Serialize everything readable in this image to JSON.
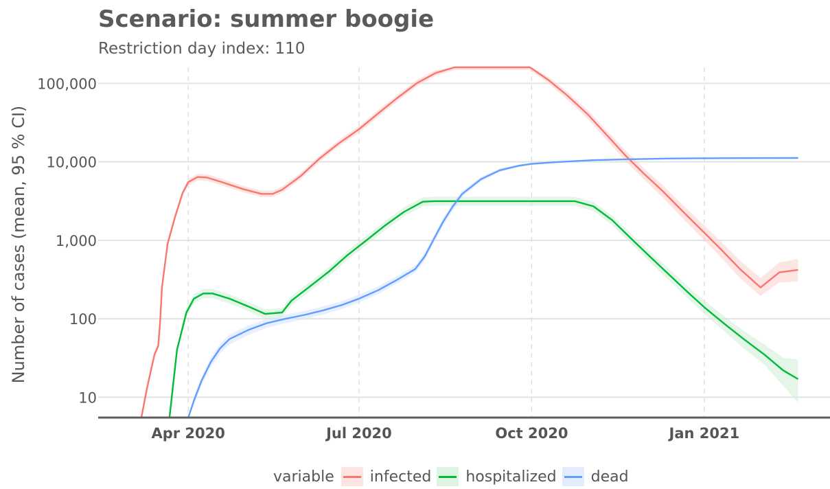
{
  "title": "Scenario: summer boogie",
  "subtitle": "Restriction day index: 110",
  "chart_data": {
    "type": "line",
    "title": "Scenario: summer boogie",
    "subtitle": "Restriction day index: 110",
    "xlabel": "",
    "ylabel": "Number of cases (mean, 95 % CI)",
    "y_scale": "log10",
    "ylim": [
      5.5,
      160000
    ],
    "xlim": [
      "2020-02-13",
      "2021-03-09"
    ],
    "x_ticks": [
      "2020-04-01",
      "2020-07-01",
      "2020-10-01",
      "2021-01-01"
    ],
    "x_tick_labels": [
      "Apr 2020",
      "Jul 2020",
      "Oct 2020",
      "Jan 2021"
    ],
    "y_ticks": [
      10,
      100,
      1000,
      10000,
      100000
    ],
    "y_tick_labels": [
      "10",
      "100",
      "1,000",
      "10,000",
      "100,000"
    ],
    "grid": true,
    "legend_title": "variable",
    "legend_position": "bottom",
    "series": [
      {
        "name": "infected",
        "color": "#F8766D",
        "band_color": "#FBD0CD",
        "x": [
          "2020-03-07",
          "2020-03-10",
          "2020-03-14",
          "2020-03-16",
          "2020-03-17",
          "2020-03-18",
          "2020-03-21",
          "2020-03-25",
          "2020-03-29",
          "2020-04-01",
          "2020-04-06",
          "2020-04-11",
          "2020-04-20",
          "2020-04-30",
          "2020-05-10",
          "2020-05-16",
          "2020-05-21",
          "2020-05-31",
          "2020-06-10",
          "2020-06-20",
          "2020-07-01",
          "2020-07-11",
          "2020-07-21",
          "2020-08-01",
          "2020-08-11",
          "2020-08-21",
          "2020-08-26",
          "2020-09-30",
          "2020-10-01",
          "2020-10-10",
          "2020-10-20",
          "2020-10-31",
          "2020-11-10",
          "2020-11-20",
          "2020-11-30",
          "2020-12-10",
          "2020-12-20",
          "2021-01-01",
          "2021-01-10",
          "2021-01-20",
          "2021-01-31",
          "2021-02-10",
          "2021-02-20"
        ],
        "values": [
          5.5,
          13,
          35,
          45,
          90,
          250,
          900,
          2000,
          4000,
          5500,
          6400,
          6300,
          5400,
          4500,
          3900,
          3900,
          4400,
          6600,
          11000,
          17000,
          26000,
          41000,
          64000,
          101000,
          136000,
          160000,
          160000,
          160000,
          155000,
          110000,
          70000,
          40000,
          22000,
          12000,
          7000,
          4200,
          2400,
          1250,
          760,
          430,
          250,
          390,
          420
        ],
        "lower": [
          5.5,
          12,
          32,
          41,
          82,
          225,
          820,
          1850,
          3700,
          5000,
          5800,
          5700,
          4900,
          4100,
          3550,
          3550,
          4000,
          6000,
          10000,
          15500,
          23500,
          37000,
          58000,
          92000,
          125000,
          148000,
          148000,
          148000,
          143000,
          100000,
          62000,
          35000,
          19000,
          10200,
          5900,
          3500,
          1950,
          1000,
          600,
          330,
          195,
          290,
          300
        ],
        "upper": [
          5.5,
          14,
          38,
          50,
          99,
          275,
          980,
          2200,
          4350,
          6050,
          7000,
          6950,
          5950,
          4950,
          4300,
          4300,
          4850,
          7250,
          12000,
          18700,
          28500,
          45000,
          70000,
          111000,
          148000,
          160000,
          160000,
          160000,
          160000,
          120000,
          78000,
          45000,
          25000,
          14000,
          8200,
          5000,
          2900,
          1550,
          950,
          550,
          330,
          520,
          580
        ]
      },
      {
        "name": "hospitalized",
        "color": "#00BA38",
        "band_color": "#CCEFD5",
        "x": [
          "2020-03-22",
          "2020-03-26",
          "2020-03-31",
          "2020-04-04",
          "2020-04-09",
          "2020-04-14",
          "2020-04-23",
          "2020-05-04",
          "2020-05-12",
          "2020-05-21",
          "2020-05-26",
          "2020-06-05",
          "2020-06-15",
          "2020-06-25",
          "2020-07-05",
          "2020-07-15",
          "2020-07-25",
          "2020-08-04",
          "2020-08-10",
          "2020-08-14",
          "2020-08-24",
          "2020-09-14",
          "2020-10-01",
          "2020-10-14",
          "2020-10-24",
          "2020-11-03",
          "2020-11-13",
          "2020-11-23",
          "2020-12-03",
          "2020-12-13",
          "2020-12-23",
          "2021-01-01",
          "2021-01-12",
          "2021-01-22",
          "2021-02-02",
          "2021-02-12",
          "2021-02-20"
        ],
        "values": [
          5.5,
          40,
          120,
          180,
          210,
          210,
          180,
          140,
          115,
          120,
          170,
          260,
          400,
          650,
          1000,
          1550,
          2300,
          3100,
          3150,
          3150,
          3150,
          3150,
          3150,
          3150,
          3150,
          2700,
          1800,
          1050,
          620,
          370,
          220,
          140,
          85,
          55,
          35,
          22,
          17
        ],
        "lower": [
          5.5,
          36,
          104,
          157,
          183,
          183,
          157,
          122,
          100,
          105,
          148,
          226,
          348,
          565,
          870,
          1350,
          2000,
          2700,
          2750,
          2750,
          2750,
          2750,
          2750,
          2750,
          2750,
          2350,
          1550,
          900,
          530,
          310,
          185,
          115,
          68,
          42,
          26,
          14,
          8.5
        ],
        "upper": [
          5.5,
          44,
          136,
          206,
          240,
          240,
          206,
          160,
          132,
          137,
          194,
          298,
          456,
          740,
          1140,
          1770,
          2620,
          3530,
          3580,
          3580,
          3580,
          3580,
          3580,
          3580,
          3580,
          3080,
          2060,
          1210,
          720,
          435,
          262,
          170,
          106,
          70,
          47,
          32,
          30
        ]
      },
      {
        "name": "dead",
        "color": "#619CFF",
        "band_color": "#D5E4FF",
        "x": [
          "2020-04-01",
          "2020-04-04",
          "2020-04-08",
          "2020-04-13",
          "2020-04-18",
          "2020-04-23",
          "2020-05-03",
          "2020-05-13",
          "2020-05-23",
          "2020-06-02",
          "2020-06-12",
          "2020-06-22",
          "2020-07-01",
          "2020-07-11",
          "2020-07-21",
          "2020-07-31",
          "2020-08-05",
          "2020-08-10",
          "2020-08-15",
          "2020-08-20",
          "2020-08-25",
          "2020-09-04",
          "2020-09-14",
          "2020-09-24",
          "2020-10-01",
          "2020-10-14",
          "2020-10-24",
          "2020-11-03",
          "2020-11-23",
          "2020-12-13",
          "2021-01-01",
          "2021-01-22",
          "2021-02-20"
        ],
        "values": [
          5.5,
          9,
          16,
          28,
          42,
          55,
          72,
          88,
          100,
          112,
          128,
          150,
          180,
          230,
          310,
          430,
          620,
          1050,
          1750,
          2700,
          3900,
          6000,
          7800,
          8900,
          9400,
          9900,
          10200,
          10500,
          10800,
          11000,
          11100,
          11150,
          11200
        ],
        "lower": [
          5.5,
          8,
          14,
          24,
          36,
          47,
          62,
          77,
          88,
          99,
          113,
          133,
          160,
          205,
          278,
          385,
          550,
          930,
          1550,
          2400,
          3550,
          5600,
          7400,
          8600,
          9100,
          9650,
          10000,
          10300,
          10650,
          10850,
          10950,
          11000,
          11050
        ],
        "upper": [
          5.5,
          10,
          18,
          32,
          48,
          63,
          82,
          100,
          113,
          126,
          144,
          168,
          202,
          258,
          346,
          480,
          690,
          1170,
          1950,
          3000,
          4250,
          6400,
          8200,
          9200,
          9700,
          10150,
          10400,
          10700,
          10950,
          11150,
          11250,
          11300,
          11350
        ]
      }
    ]
  }
}
